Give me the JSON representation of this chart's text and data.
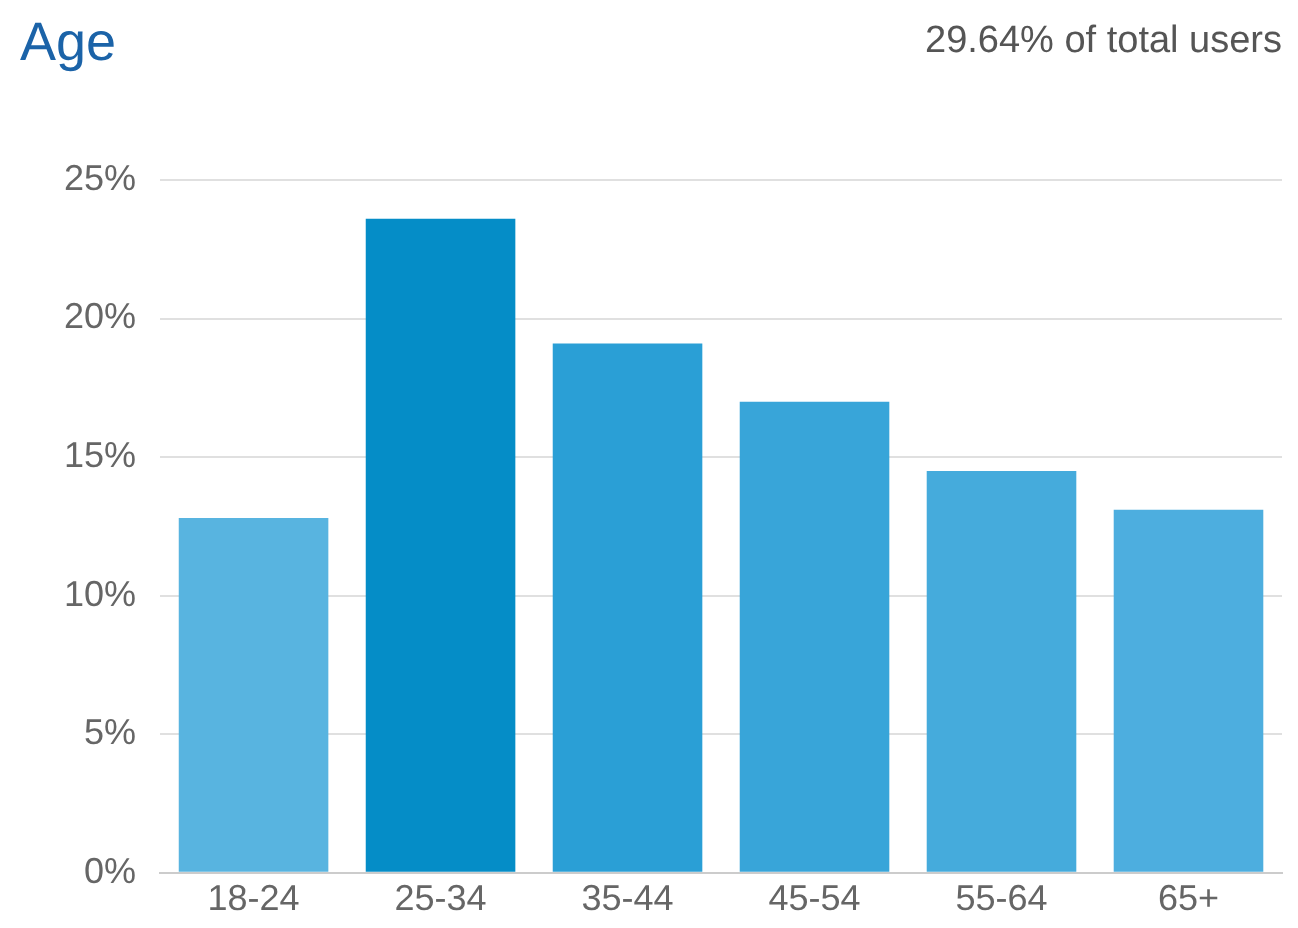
{
  "chart_data": {
    "type": "bar",
    "title": "Age",
    "subtitle": "29.64% of total users",
    "categories": [
      "18-24",
      "25-34",
      "35-44",
      "45-54",
      "55-64",
      "65+"
    ],
    "values": [
      12.8,
      23.6,
      19.1,
      17.0,
      14.5,
      13.1
    ],
    "colors": [
      "#58b4e0",
      "#058dc7",
      "#2a9fd6",
      "#38a5d9",
      "#45abdc",
      "#4daedf"
    ],
    "ylim": [
      0,
      25
    ],
    "yticks": [
      {
        "value": 0,
        "label": "0%"
      },
      {
        "value": 5,
        "label": "5%"
      },
      {
        "value": 10,
        "label": "10%"
      },
      {
        "value": 15,
        "label": "15%"
      },
      {
        "value": 20,
        "label": "20%"
      },
      {
        "value": 25,
        "label": "25%"
      }
    ],
    "grid": "y"
  }
}
